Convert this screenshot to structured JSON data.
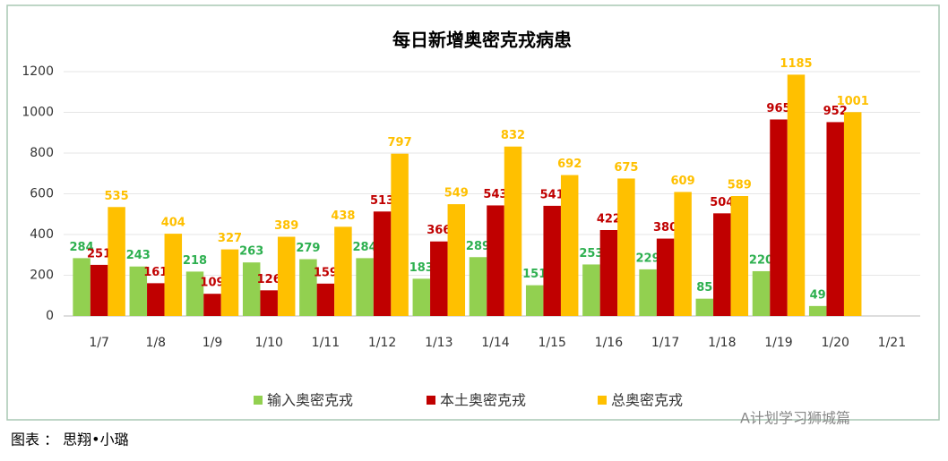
{
  "chart_data": {
    "type": "bar",
    "title": "每日新增奥密克戎病患",
    "categories": [
      "1/7",
      "1/8",
      "1/9",
      "1/10",
      "1/11",
      "1/12",
      "1/13",
      "1/14",
      "1/15",
      "1/16",
      "1/17",
      "1/18",
      "1/19",
      "1/20",
      "1/21"
    ],
    "series": [
      {
        "name": "输入奥密克戎",
        "color": "#92d050",
        "values": [
          284,
          243,
          218,
          263,
          279,
          284,
          183,
          289,
          151,
          253,
          229,
          85,
          220,
          49,
          null
        ]
      },
      {
        "name": "本土奥密克戎",
        "color": "#c00000",
        "values": [
          251,
          161,
          109,
          126,
          159,
          513,
          366,
          543,
          541,
          422,
          380,
          504,
          965,
          952,
          null
        ]
      },
      {
        "name": "总奥密克戎",
        "color": "#ffc000",
        "values": [
          535,
          404,
          327,
          389,
          438,
          797,
          549,
          832,
          692,
          675,
          609,
          589,
          1185,
          1001,
          null
        ]
      }
    ],
    "ylim": [
      0,
      1200
    ],
    "yticks": [
      0,
      200,
      400,
      600,
      800,
      1000,
      1200
    ],
    "grid": true,
    "legend": "bottom"
  },
  "caption": "图表 ： 思翔•小璐",
  "watermark": "A计划学习狮城篇"
}
